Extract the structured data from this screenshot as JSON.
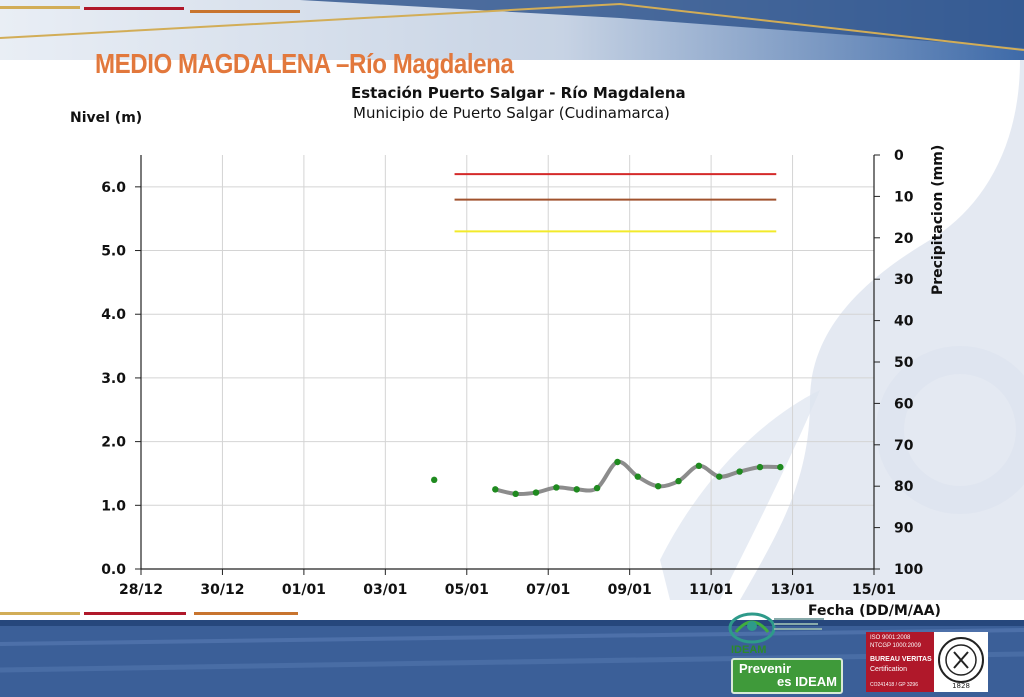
{
  "slide": {
    "title": "MEDIO MAGDALENA –Río Magdalena"
  },
  "chart_data": {
    "type": "line",
    "title": "Estación Puerto Salgar - Río Magdalena",
    "subtitle": "Municipio de Puerto Salgar (Cudinamarca)",
    "ylabel": "Nivel (m)",
    "y2label": "Precipitacion (mm)",
    "xlabel": "Fecha (DD/M/AA)",
    "x_tick_labels": [
      "28/12",
      "30/12",
      "01/01",
      "03/01",
      "05/01",
      "07/01",
      "09/01",
      "11/01",
      "13/01",
      "15/01"
    ],
    "y_tick_labels": [
      "0.0",
      "1.0",
      "2.0",
      "3.0",
      "4.0",
      "5.0",
      "6.0"
    ],
    "y2_tick_labels": [
      "0",
      "10",
      "20",
      "30",
      "40",
      "50",
      "60",
      "70",
      "80",
      "90",
      "100"
    ],
    "ylim": [
      0,
      6.5
    ],
    "y2lim": [
      0,
      100
    ],
    "y2_inverted": true,
    "grid": true,
    "level_series": {
      "x_days_from_first_tick": [
        7.2,
        8.7,
        9.2,
        9.7,
        10.2,
        10.7,
        11.2,
        11.7,
        12.2,
        12.7,
        13.2,
        13.7,
        14.2,
        14.7,
        15.2,
        15.7
      ],
      "values": [
        1.4,
        1.25,
        1.18,
        1.2,
        1.28,
        1.25,
        1.27,
        1.68,
        1.45,
        1.3,
        1.38,
        1.62,
        1.45,
        1.53,
        1.6,
        1.6
      ],
      "line_color": "#8c8c8c",
      "marker_color": "#1f8a1f"
    },
    "thresholds": [
      {
        "value": 6.2,
        "color": "#d42a2a"
      },
      {
        "value": 5.8,
        "color": "#a0522d"
      },
      {
        "value": 5.3,
        "color": "#f2ea2a"
      }
    ]
  },
  "footer": {
    "ideam_name": "IDEAM",
    "tag_line1": "Prevenir",
    "tag_line2": "es IDEAM",
    "bv_iso": "ISO 9001:2008",
    "bv_ntcgp": "NTCGP 1000:2009",
    "bv_name": "BUREAU VERITAS",
    "bv_cert": "Certification",
    "bv_code": "CO241418 / GP 3296",
    "bv_year": "1828"
  },
  "colors": {
    "title_orange": "#e2783c",
    "band_blue": "#4a6fa5",
    "band_dark": "#2f4f86",
    "accent_gold": "#c9a03c",
    "accent_red": "#b0182a"
  }
}
